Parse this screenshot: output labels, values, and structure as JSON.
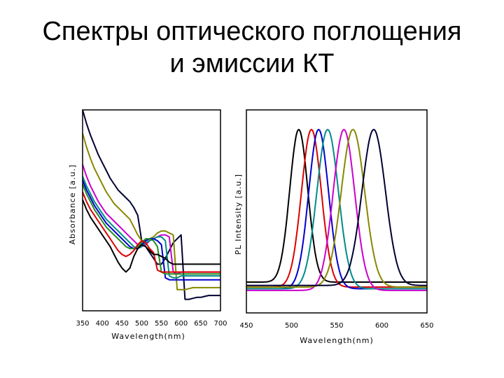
{
  "slide": {
    "title_line1": "Спектры оптического поглощения",
    "title_line2": "и эмиссии КТ"
  },
  "chart_data": [
    {
      "type": "line",
      "xlabel": "Wavelength(nm)",
      "ylabel": "Absorbance [a.u.]",
      "xlim": [
        350,
        700
      ],
      "ylim": [
        0,
        1
      ],
      "xticks": [
        "350",
        "400",
        "450",
        "500",
        "550",
        "600",
        "650",
        "700"
      ],
      "yticks": [],
      "grid": false,
      "series": [
        {
          "color": "#000033",
          "x": [
            350,
            360,
            370,
            380,
            390,
            400,
            410,
            420,
            430,
            440,
            450,
            460,
            470,
            480,
            490,
            500,
            510,
            520,
            530,
            540,
            550,
            560,
            570,
            580,
            590,
            600,
            610,
            620,
            630,
            640,
            650,
            660,
            670,
            680,
            690,
            700
          ],
          "y": [
            1.0,
            0.93,
            0.87,
            0.82,
            0.77,
            0.73,
            0.69,
            0.65,
            0.62,
            0.59,
            0.57,
            0.55,
            0.53,
            0.5,
            0.46,
            0.33,
            0.3,
            0.27,
            0.24,
            0.21,
            0.21,
            0.24,
            0.28,
            0.32,
            0.34,
            0.36,
            0.03,
            0.03,
            0.035,
            0.04,
            0.04,
            0.045,
            0.05,
            0.05,
            0.05,
            0.05
          ]
        },
        {
          "color": "#888800",
          "x": [
            350,
            360,
            370,
            380,
            390,
            400,
            410,
            420,
            430,
            440,
            450,
            460,
            470,
            480,
            490,
            500,
            510,
            520,
            530,
            540,
            550,
            560,
            570,
            580,
            590,
            600,
            610,
            620,
            630,
            640,
            650,
            660,
            670,
            680,
            690,
            700
          ],
          "y": [
            0.88,
            0.81,
            0.75,
            0.7,
            0.66,
            0.62,
            0.58,
            0.55,
            0.52,
            0.5,
            0.48,
            0.46,
            0.44,
            0.4,
            0.36,
            0.33,
            0.33,
            0.34,
            0.35,
            0.37,
            0.38,
            0.38,
            0.37,
            0.36,
            0.08,
            0.08,
            0.08,
            0.085,
            0.09,
            0.09,
            0.09,
            0.09,
            0.09,
            0.09,
            0.09,
            0.09
          ]
        },
        {
          "color": "#cc00cc",
          "x": [
            350,
            360,
            370,
            380,
            390,
            400,
            410,
            420,
            430,
            440,
            450,
            460,
            470,
            480,
            490,
            500,
            510,
            520,
            530,
            540,
            550,
            560,
            570,
            580,
            590,
            600,
            610,
            620,
            630,
            640,
            650,
            660,
            670,
            680,
            690,
            700
          ],
          "y": [
            0.72,
            0.66,
            0.61,
            0.57,
            0.53,
            0.5,
            0.47,
            0.45,
            0.43,
            0.41,
            0.39,
            0.37,
            0.35,
            0.33,
            0.31,
            0.3,
            0.31,
            0.33,
            0.34,
            0.35,
            0.36,
            0.36,
            0.35,
            0.17,
            0.16,
            0.17,
            0.17,
            0.17,
            0.17,
            0.17,
            0.17,
            0.17,
            0.17,
            0.17,
            0.17,
            0.17
          ]
        },
        {
          "color": "#008b8b",
          "x": [
            350,
            360,
            370,
            380,
            390,
            400,
            410,
            420,
            430,
            440,
            450,
            460,
            470,
            480,
            490,
            500,
            510,
            520,
            530,
            540,
            550,
            560,
            570,
            580,
            590,
            600,
            610,
            620,
            630,
            640,
            650,
            660,
            670,
            680,
            690,
            700
          ],
          "y": [
            0.66,
            0.61,
            0.57,
            0.53,
            0.5,
            0.47,
            0.44,
            0.42,
            0.4,
            0.38,
            0.36,
            0.34,
            0.32,
            0.3,
            0.29,
            0.3,
            0.32,
            0.33,
            0.34,
            0.35,
            0.35,
            0.33,
            0.15,
            0.14,
            0.14,
            0.15,
            0.15,
            0.15,
            0.15,
            0.15,
            0.15,
            0.15,
            0.15,
            0.15,
            0.15,
            0.15
          ]
        },
        {
          "color": "#0000cc",
          "x": [
            350,
            360,
            370,
            380,
            390,
            400,
            410,
            420,
            430,
            440,
            450,
            460,
            470,
            480,
            490,
            500,
            510,
            520,
            530,
            540,
            550,
            560,
            570,
            580,
            590,
            600,
            610,
            620,
            630,
            640,
            650,
            660,
            670,
            680,
            690,
            700
          ],
          "y": [
            0.64,
            0.59,
            0.55,
            0.51,
            0.48,
            0.45,
            0.42,
            0.4,
            0.38,
            0.36,
            0.34,
            0.32,
            0.3,
            0.29,
            0.29,
            0.31,
            0.33,
            0.34,
            0.34,
            0.33,
            0.31,
            0.14,
            0.13,
            0.13,
            0.13,
            0.13,
            0.13,
            0.13,
            0.13,
            0.13,
            0.13,
            0.13,
            0.13,
            0.13,
            0.13,
            0.13
          ]
        },
        {
          "color": "#228b22",
          "x": [
            350,
            360,
            370,
            380,
            390,
            400,
            410,
            420,
            430,
            440,
            450,
            460,
            470,
            480,
            490,
            500,
            510,
            520,
            530,
            540,
            550,
            560,
            570,
            580,
            590,
            600,
            610,
            620,
            630,
            640,
            650,
            660,
            670,
            680,
            690,
            700
          ],
          "y": [
            0.62,
            0.57,
            0.53,
            0.49,
            0.46,
            0.43,
            0.4,
            0.38,
            0.36,
            0.34,
            0.32,
            0.3,
            0.29,
            0.29,
            0.3,
            0.32,
            0.34,
            0.34,
            0.33,
            0.3,
            0.17,
            0.16,
            0.16,
            0.16,
            0.16,
            0.16,
            0.16,
            0.16,
            0.16,
            0.16,
            0.16,
            0.16,
            0.16,
            0.16,
            0.16,
            0.16
          ]
        },
        {
          "color": "#dd0000",
          "x": [
            350,
            360,
            370,
            380,
            390,
            400,
            410,
            420,
            430,
            440,
            450,
            460,
            470,
            480,
            490,
            500,
            510,
            520,
            530,
            540,
            550,
            560,
            570,
            580,
            590,
            600,
            610,
            620,
            630,
            640,
            650,
            660,
            670,
            680,
            690,
            700
          ],
          "y": [
            0.58,
            0.53,
            0.49,
            0.46,
            0.43,
            0.4,
            0.37,
            0.34,
            0.31,
            0.28,
            0.26,
            0.25,
            0.26,
            0.28,
            0.31,
            0.33,
            0.32,
            0.29,
            0.27,
            0.18,
            0.17,
            0.17,
            0.17,
            0.17,
            0.17,
            0.17,
            0.17,
            0.17,
            0.17,
            0.17,
            0.17,
            0.17,
            0.17,
            0.17,
            0.17,
            0.17
          ]
        },
        {
          "color": "#000000",
          "x": [
            350,
            360,
            370,
            380,
            390,
            400,
            410,
            420,
            430,
            440,
            450,
            460,
            470,
            480,
            490,
            500,
            510,
            520,
            530,
            540,
            550,
            560,
            570,
            580,
            590,
            600,
            610,
            620,
            630,
            640,
            650,
            660,
            670,
            680,
            690,
            700
          ],
          "y": [
            0.54,
            0.49,
            0.45,
            0.42,
            0.39,
            0.36,
            0.33,
            0.3,
            0.26,
            0.22,
            0.19,
            0.17,
            0.19,
            0.25,
            0.29,
            0.31,
            0.3,
            0.28,
            0.26,
            0.26,
            0.25,
            0.24,
            0.22,
            0.21,
            0.21,
            0.21,
            0.21,
            0.21,
            0.21,
            0.21,
            0.21,
            0.21,
            0.21,
            0.21,
            0.21,
            0.21
          ]
        }
      ]
    },
    {
      "type": "line",
      "xlabel": "Wavelength(nm)",
      "ylabel": "PL Intensity [a.u.]",
      "xlim": [
        450,
        650
      ],
      "ylim": [
        0,
        1
      ],
      "xticks": [
        "450",
        "500",
        "550",
        "600",
        "650"
      ],
      "yticks": [],
      "grid": false,
      "series": [
        {
          "color": "#000000",
          "peak": 508,
          "width": 10,
          "baseline": 0.08
        },
        {
          "color": "#dd0000",
          "peak": 522,
          "width": 11,
          "baseline": 0.05
        },
        {
          "color": "#0000cc",
          "peak": 530,
          "width": 11,
          "baseline": 0.04
        },
        {
          "color": "#008b8b",
          "peak": 540,
          "width": 12,
          "baseline": 0.04
        },
        {
          "color": "#cc00cc",
          "peak": 558,
          "width": 12,
          "baseline": 0.03
        },
        {
          "color": "#888800",
          "peak": 568,
          "width": 13,
          "baseline": 0.05
        },
        {
          "color": "#000033",
          "peak": 591,
          "width": 13,
          "baseline": 0.06
        }
      ]
    }
  ]
}
